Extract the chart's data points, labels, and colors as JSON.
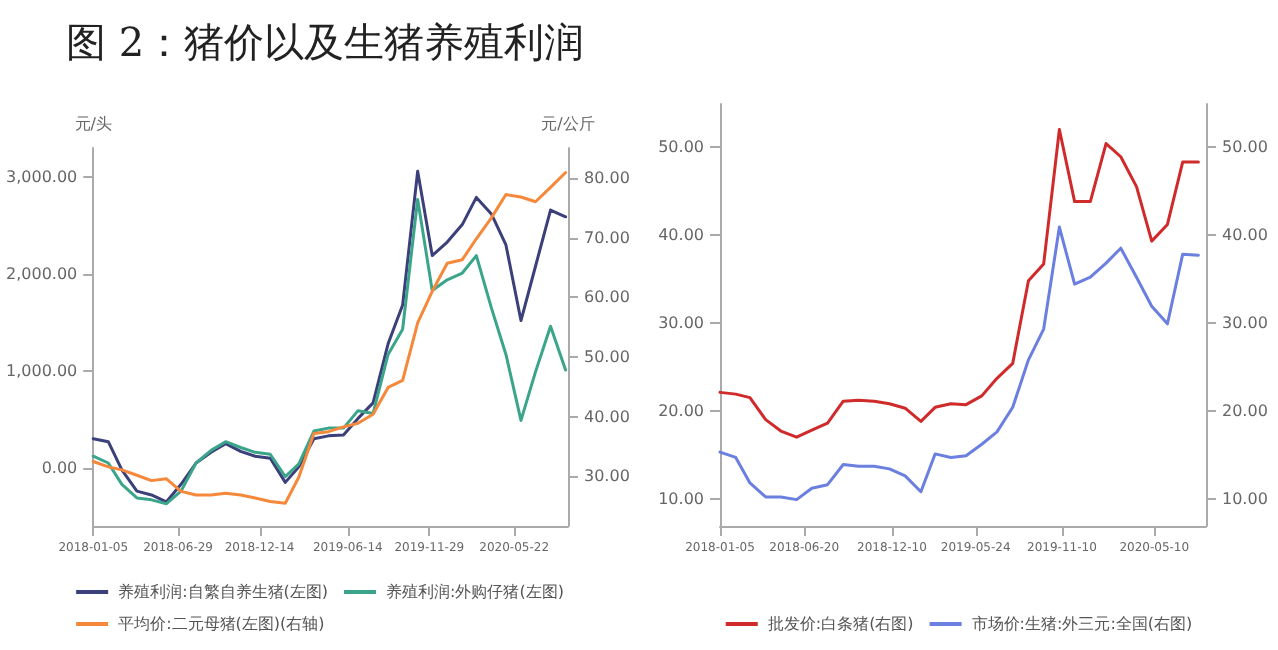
{
  "chart_data": [
    {
      "type": "line",
      "title": "图 2：猪价以及生猪养殖利润",
      "ylabel": "元/头",
      "y2label": "元/公斤",
      "x": [
        "2018-01-05",
        "2018-02-05",
        "2018-03-05",
        "2018-04-05",
        "2018-05-05",
        "2018-06-05",
        "2018-07-05",
        "2018-08-05",
        "2018-09-05",
        "2018-10-05",
        "2018-11-05",
        "2018-12-05",
        "2019-01-05",
        "2019-02-05",
        "2019-03-05",
        "2019-04-05",
        "2019-05-05",
        "2019-06-05",
        "2019-07-05",
        "2019-08-05",
        "2019-09-05",
        "2019-10-05",
        "2019-11-05",
        "2019-12-05",
        "2020-01-05",
        "2020-02-05",
        "2020-03-05",
        "2020-04-05",
        "2020-05-05",
        "2020-06-05",
        "2020-07-05",
        "2020-08-05",
        "2020-09-05"
      ],
      "series": [
        {
          "name": "养殖利润:自繁自养生猪(左图)",
          "color": "#3b3f7a",
          "values": [
            300,
            270,
            -20,
            -240,
            -280,
            -350,
            -170,
            50,
            160,
            250,
            170,
            120,
            100,
            -150,
            10,
            300,
            330,
            340,
            510,
            670,
            1280,
            1680,
            3060,
            2190,
            2330,
            2510,
            2790,
            2620,
            2300,
            1520,
            2080,
            2660,
            2590
          ]
        },
        {
          "name": "养殖利润:外购仔猪(左图)",
          "color": "#3aa58a",
          "values": [
            120,
            50,
            -170,
            -310,
            -330,
            -370,
            -240,
            50,
            180,
            270,
            210,
            160,
            140,
            -90,
            40,
            380,
            410,
            410,
            590,
            560,
            1170,
            1430,
            2770,
            1830,
            1940,
            2010,
            2190,
            1650,
            1170,
            490,
            990,
            1460,
            1010
          ]
        },
        {
          "name": "平均价:二元母猪(左图)(右轴)",
          "color": "#f5883a",
          "axis": "y2",
          "values": [
            32.5,
            31.6,
            31.1,
            30.2,
            29.3,
            29.6,
            27.5,
            26.9,
            26.9,
            27.2,
            26.9,
            26.4,
            25.8,
            25.5,
            29.9,
            37.2,
            37.5,
            38.3,
            38.9,
            40.4,
            44.9,
            46.1,
            55.7,
            61.0,
            65.7,
            66.3,
            69.8,
            73.3,
            77.2,
            76.8,
            76.0,
            78.4,
            80.9
          ]
        }
      ],
      "xlim": [
        "2018-01-05",
        "2020-09-10"
      ],
      "xticks": [
        "2018-01-05",
        "2018-06-29",
        "2018-12-14",
        "2019-06-14",
        "2019-11-29",
        "2020-05-22"
      ],
      "ylim": [
        -600,
        3300
      ],
      "yticks": [
        {
          "value": 0,
          "label": "0.00"
        },
        {
          "value": 1000,
          "label": "1,000.00"
        },
        {
          "value": 2000,
          "label": "2,000.00"
        },
        {
          "value": 3000,
          "label": "3,000.00"
        }
      ],
      "y2lim": [
        21.7,
        85
      ],
      "y2ticks": [
        {
          "value": 30,
          "label": "30.00"
        },
        {
          "value": 40,
          "label": "40.00"
        },
        {
          "value": 50,
          "label": "50.00"
        },
        {
          "value": 60,
          "label": "60.00"
        },
        {
          "value": 70,
          "label": "70.00"
        },
        {
          "value": 80,
          "label": "80.00"
        }
      ],
      "legend": "bottom",
      "grid": false
    },
    {
      "type": "line",
      "x": [
        "2018-01-05",
        "2018-02-05",
        "2018-03-05",
        "2018-04-05",
        "2018-05-05",
        "2018-06-05",
        "2018-07-05",
        "2018-08-05",
        "2018-09-05",
        "2018-10-05",
        "2018-11-05",
        "2018-12-05",
        "2019-01-05",
        "2019-02-05",
        "2019-03-05",
        "2019-04-05",
        "2019-05-05",
        "2019-06-05",
        "2019-07-05",
        "2019-08-05",
        "2019-09-05",
        "2019-10-05",
        "2019-11-05",
        "2019-12-05",
        "2020-01-05",
        "2020-02-05",
        "2020-03-05",
        "2020-04-05",
        "2020-05-05",
        "2020-06-05",
        "2020-07-05",
        "2020-08-05"
      ],
      "series": [
        {
          "name": "批发价:白条猪(右图)",
          "color": "#d02a2a",
          "values": [
            22.1,
            21.9,
            21.5,
            19.0,
            17.7,
            17.0,
            17.8,
            18.6,
            21.1,
            21.2,
            21.1,
            20.8,
            20.3,
            18.8,
            20.4,
            20.8,
            20.7,
            21.7,
            23.7,
            25.4,
            34.8,
            36.7,
            52.0,
            43.8,
            43.8,
            50.4,
            48.9,
            45.5,
            39.3,
            41.2,
            48.3,
            48.3
          ]
        },
        {
          "name": "市场价:生猪:外三元:全国(右图)",
          "color": "#6b7fe0",
          "values": [
            15.3,
            14.7,
            11.8,
            10.2,
            10.2,
            9.9,
            11.2,
            11.6,
            13.9,
            13.7,
            13.7,
            13.4,
            12.6,
            10.8,
            15.1,
            14.7,
            14.9,
            16.2,
            17.6,
            20.4,
            25.8,
            29.3,
            40.9,
            34.4,
            35.2,
            36.8,
            38.5,
            35.2,
            31.9,
            29.9,
            37.8,
            37.7
          ]
        }
      ],
      "xlim": [
        "2018-01-05",
        "2020-08-20"
      ],
      "xticks": [
        "2018-01-05",
        "2018-06-20",
        "2018-12-10",
        "2019-05-24",
        "2019-11-10",
        "2020-05-10"
      ],
      "ylim": [
        6.9,
        54.9
      ],
      "yticks": [
        {
          "value": 10,
          "label": "10.00"
        },
        {
          "value": 20,
          "label": "20.00"
        },
        {
          "value": 30,
          "label": "30.00"
        },
        {
          "value": 40,
          "label": "40.00"
        },
        {
          "value": 50,
          "label": "50.00"
        }
      ],
      "y2lim": [
        6.9,
        54.9
      ],
      "y2ticks": [
        {
          "value": 10,
          "label": "10.00"
        },
        {
          "value": 20,
          "label": "20.00"
        },
        {
          "value": 30,
          "label": "30.00"
        },
        {
          "value": 40,
          "label": "40.00"
        },
        {
          "value": 50,
          "label": "50.00"
        }
      ],
      "legend": "bottom",
      "grid": false
    }
  ]
}
